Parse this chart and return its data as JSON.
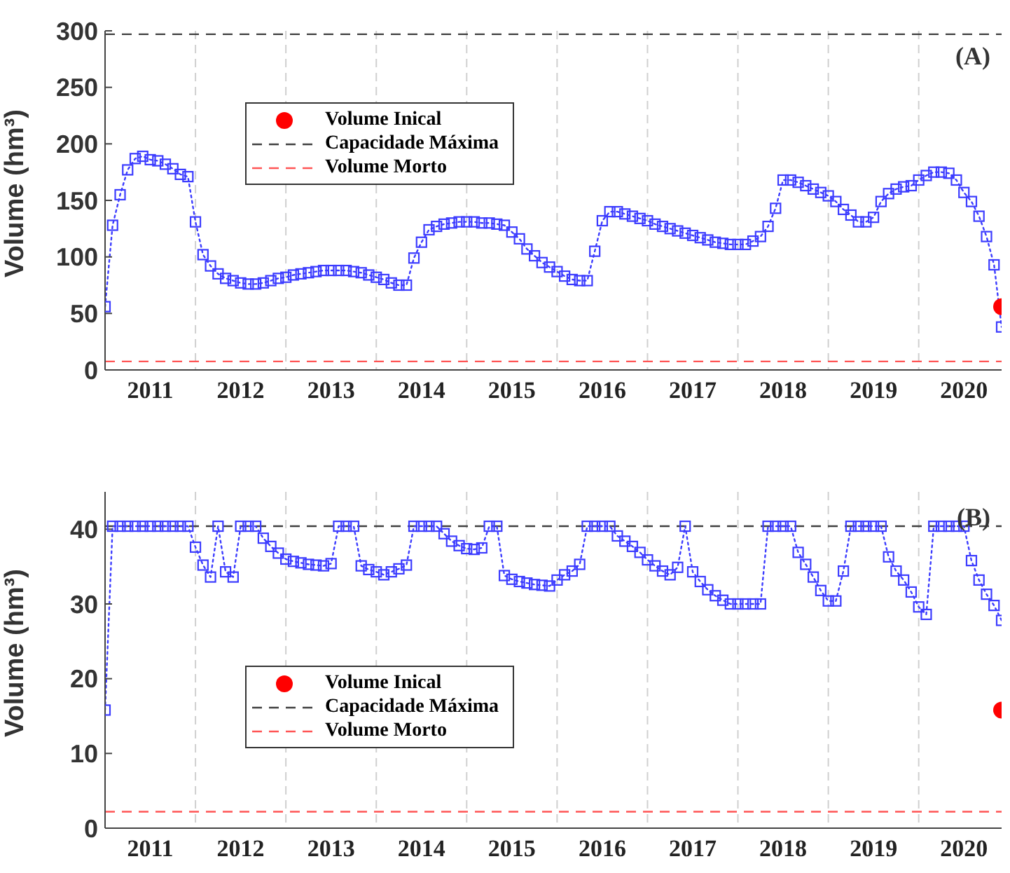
{
  "chart_data": [
    {
      "type": "line",
      "ylabel": "Volume (hm³)",
      "annotations": [
        "(A)"
      ],
      "x": [
        "2011-01",
        "2011-02",
        "2011-03",
        "2011-04",
        "2011-05",
        "2011-06",
        "2011-07",
        "2011-08",
        "2011-09",
        "2011-10",
        "2011-11",
        "2011-12",
        "2012-01",
        "2012-02",
        "2012-03",
        "2012-04",
        "2012-05",
        "2012-06",
        "2012-07",
        "2012-08",
        "2012-09",
        "2012-10",
        "2012-11",
        "2012-12",
        "2013-01",
        "2013-02",
        "2013-03",
        "2013-04",
        "2013-05",
        "2013-06",
        "2013-07",
        "2013-08",
        "2013-09",
        "2013-10",
        "2013-11",
        "2013-12",
        "2014-01",
        "2014-02",
        "2014-03",
        "2014-04",
        "2014-05",
        "2014-06",
        "2014-07",
        "2014-08",
        "2014-09",
        "2014-10",
        "2014-11",
        "2014-12",
        "2015-01",
        "2015-02",
        "2015-03",
        "2015-04",
        "2015-05",
        "2015-06",
        "2015-07",
        "2015-08",
        "2015-09",
        "2015-10",
        "2015-11",
        "2015-12",
        "2016-01",
        "2016-02",
        "2016-03",
        "2016-04",
        "2016-05",
        "2016-06",
        "2016-07",
        "2016-08",
        "2016-09",
        "2016-10",
        "2016-11",
        "2016-12",
        "2017-01",
        "2017-02",
        "2017-03",
        "2017-04",
        "2017-05",
        "2017-06",
        "2017-07",
        "2017-08",
        "2017-09",
        "2017-10",
        "2017-11",
        "2017-12",
        "2018-01",
        "2018-02",
        "2018-03",
        "2018-04",
        "2018-05",
        "2018-06",
        "2018-07",
        "2018-08",
        "2018-09",
        "2018-10",
        "2018-11",
        "2018-12",
        "2019-01",
        "2019-02",
        "2019-03",
        "2019-04",
        "2019-05",
        "2019-06",
        "2019-07",
        "2019-08",
        "2019-09",
        "2019-10",
        "2019-11",
        "2019-12",
        "2020-01",
        "2020-02",
        "2020-03",
        "2020-04",
        "2020-05",
        "2020-06",
        "2020-07",
        "2020-08",
        "2020-09",
        "2020-10",
        "2020-11",
        "2020-12"
      ],
      "series": [
        {
          "color": "#3c3cff",
          "marker": "square",
          "line_style": "dotted",
          "values": [
            56,
            128,
            155,
            177,
            187,
            189,
            186,
            185,
            182,
            178,
            173,
            171,
            131,
            102,
            92,
            85,
            81,
            79,
            77,
            76,
            76,
            77,
            79,
            81,
            82,
            84,
            85,
            86,
            87,
            88,
            88,
            88,
            88,
            87,
            86,
            84,
            82,
            80,
            77,
            75,
            75,
            99,
            113,
            124,
            127,
            129,
            130,
            131,
            131,
            131,
            130,
            130,
            129,
            128,
            122,
            116,
            107,
            101,
            95,
            91,
            87,
            83,
            80,
            79,
            79,
            105,
            132,
            140,
            140,
            138,
            136,
            134,
            132,
            129,
            127,
            125,
            123,
            121,
            119,
            117,
            115,
            113,
            112,
            111,
            111,
            111,
            114,
            118,
            127,
            143,
            168,
            168,
            166,
            163,
            160,
            157,
            154,
            149,
            142,
            137,
            131,
            131,
            135,
            149,
            156,
            160,
            162,
            163,
            168,
            172,
            175,
            175,
            174,
            168,
            157,
            149,
            136,
            118,
            93,
            38
          ]
        },
        {
          "type": "scatter",
          "name": "Volume Inical",
          "color": "#ff0000",
          "marker": "circle",
          "x": [
            "2020-12"
          ],
          "values": [
            56
          ]
        }
      ],
      "ref_lines": [
        {
          "axis": "y",
          "value": 297,
          "label": "Capacidade Máxima",
          "color": "#404040",
          "line_style": "dashed"
        },
        {
          "axis": "y",
          "value": 7.5,
          "label": "Volume Morto",
          "color": "#ff5555",
          "line_style": "dashed"
        }
      ],
      "xlim": [
        "2011-01",
        "2020-12"
      ],
      "xticks": [
        {
          "value": "2011-07",
          "label": "2011"
        },
        {
          "value": "2012-01",
          "label": null
        },
        {
          "value": "2012-07",
          "label": "2012"
        },
        {
          "value": "2013-01",
          "label": null
        },
        {
          "value": "2013-07",
          "label": "2013"
        },
        {
          "value": "2014-01",
          "label": null
        },
        {
          "value": "2014-07",
          "label": "2014"
        },
        {
          "value": "2015-01",
          "label": null
        },
        {
          "value": "2015-07",
          "label": "2015"
        },
        {
          "value": "2016-01",
          "label": null
        },
        {
          "value": "2016-07",
          "label": "2016"
        },
        {
          "value": "2017-01",
          "label": null
        },
        {
          "value": "2017-07",
          "label": "2017"
        },
        {
          "value": "2018-01",
          "label": null
        },
        {
          "value": "2018-07",
          "label": "2018"
        },
        {
          "value": "2019-01",
          "label": null
        },
        {
          "value": "2019-07",
          "label": "2019"
        },
        {
          "value": "2020-01",
          "label": null
        },
        {
          "value": "2020-07",
          "label": "2020"
        }
      ],
      "ylim": [
        0,
        300
      ],
      "yticks": [
        0,
        50,
        100,
        150,
        200,
        250,
        300
      ],
      "grid": "x",
      "legend": "top left"
    },
    {
      "type": "line",
      "ylabel": "Volume (hm³)",
      "annotations": [
        "(B)"
      ],
      "x": [
        "2011-01",
        "2011-02",
        "2011-03",
        "2011-04",
        "2011-05",
        "2011-06",
        "2011-07",
        "2011-08",
        "2011-09",
        "2011-10",
        "2011-11",
        "2011-12",
        "2012-01",
        "2012-02",
        "2012-03",
        "2012-04",
        "2012-05",
        "2012-06",
        "2012-07",
        "2012-08",
        "2012-09",
        "2012-10",
        "2012-11",
        "2012-12",
        "2013-01",
        "2013-02",
        "2013-03",
        "2013-04",
        "2013-05",
        "2013-06",
        "2013-07",
        "2013-08",
        "2013-09",
        "2013-10",
        "2013-11",
        "2013-12",
        "2014-01",
        "2014-02",
        "2014-03",
        "2014-04",
        "2014-05",
        "2014-06",
        "2014-07",
        "2014-08",
        "2014-09",
        "2014-10",
        "2014-11",
        "2014-12",
        "2015-01",
        "2015-02",
        "2015-03",
        "2015-04",
        "2015-05",
        "2015-06",
        "2015-07",
        "2015-08",
        "2015-09",
        "2015-10",
        "2015-11",
        "2015-12",
        "2016-01",
        "2016-02",
        "2016-03",
        "2016-04",
        "2016-05",
        "2016-06",
        "2016-07",
        "2016-08",
        "2016-09",
        "2016-10",
        "2016-11",
        "2016-12",
        "2017-01",
        "2017-02",
        "2017-03",
        "2017-04",
        "2017-05",
        "2017-06",
        "2017-07",
        "2017-08",
        "2017-09",
        "2017-10",
        "2017-11",
        "2017-12",
        "2018-01",
        "2018-02",
        "2018-03",
        "2018-04",
        "2018-05",
        "2018-06",
        "2018-07",
        "2018-08",
        "2018-09",
        "2018-10",
        "2018-11",
        "2018-12",
        "2019-01",
        "2019-02",
        "2019-03",
        "2019-04",
        "2019-05",
        "2019-06",
        "2019-07",
        "2019-08",
        "2019-09",
        "2019-10",
        "2019-11",
        "2019-12",
        "2020-01",
        "2020-02",
        "2020-03",
        "2020-04",
        "2020-05",
        "2020-06",
        "2020-07",
        "2020-08",
        "2020-09",
        "2020-10",
        "2020-11",
        "2020-12"
      ],
      "series": [
        {
          "color": "#3c3cff",
          "marker": "square",
          "line_style": "dotted",
          "values": [
            15.8,
            40.4,
            40.4,
            40.4,
            40.4,
            40.4,
            40.4,
            40.4,
            40.4,
            40.4,
            40.4,
            40.4,
            37.6,
            35.2,
            33.6,
            40.4,
            34.3,
            33.6,
            40.4,
            40.4,
            40.4,
            38.8,
            37.7,
            36.8,
            36.0,
            35.7,
            35.5,
            35.3,
            35.2,
            35.1,
            35.4,
            40.4,
            40.4,
            40.4,
            35.1,
            34.6,
            34.3,
            33.9,
            34.3,
            34.7,
            35.2,
            40.4,
            40.4,
            40.4,
            40.4,
            39.4,
            38.4,
            37.8,
            37.4,
            37.3,
            37.5,
            40.4,
            40.4,
            33.8,
            33.3,
            33.0,
            32.8,
            32.6,
            32.5,
            32.4,
            33.2,
            33.9,
            34.4,
            35.3,
            40.4,
            40.4,
            40.4,
            40.4,
            39.1,
            38.4,
            37.7,
            36.9,
            35.9,
            35.1,
            34.4,
            33.9,
            34.9,
            40.4,
            34.3,
            33.0,
            31.9,
            31.1,
            30.5,
            30.0,
            30.0,
            30.0,
            30.0,
            30.0,
            40.4,
            40.4,
            40.4,
            40.4,
            36.9,
            35.3,
            33.6,
            31.8,
            30.4,
            30.4,
            34.4,
            40.4,
            40.4,
            40.4,
            40.4,
            40.4,
            36.3,
            34.4,
            33.2,
            31.6,
            29.6,
            28.6,
            40.4,
            40.4,
            40.4,
            40.4,
            40.4,
            35.8,
            33.2,
            31.3,
            29.8,
            27.8
          ]
        },
        {
          "type": "scatter",
          "name": "Volume Inical",
          "color": "#ff0000",
          "marker": "circle",
          "x": [
            "2020-12"
          ],
          "values": [
            15.8
          ]
        }
      ],
      "ref_lines": [
        {
          "axis": "y",
          "value": 40.4,
          "label": "Capacidade Máxima",
          "color": "#404040",
          "line_style": "dashed"
        },
        {
          "axis": "y",
          "value": 2.2,
          "label": "Volume Morto",
          "color": "#ff5555",
          "line_style": "dashed"
        }
      ],
      "xlim": [
        "2011-01",
        "2020-12"
      ],
      "xticks": [
        {
          "value": "2011-07",
          "label": "2011"
        },
        {
          "value": "2012-01",
          "label": null
        },
        {
          "value": "2012-07",
          "label": "2012"
        },
        {
          "value": "2013-01",
          "label": null
        },
        {
          "value": "2013-07",
          "label": "2013"
        },
        {
          "value": "2014-01",
          "label": null
        },
        {
          "value": "2014-07",
          "label": "2014"
        },
        {
          "value": "2015-01",
          "label": null
        },
        {
          "value": "2015-07",
          "label": "2015"
        },
        {
          "value": "2016-01",
          "label": null
        },
        {
          "value": "2016-07",
          "label": "2016"
        },
        {
          "value": "2017-01",
          "label": null
        },
        {
          "value": "2017-07",
          "label": "2017"
        },
        {
          "value": "2018-01",
          "label": null
        },
        {
          "value": "2018-07",
          "label": "2018"
        },
        {
          "value": "2019-01",
          "label": null
        },
        {
          "value": "2019-07",
          "label": "2019"
        },
        {
          "value": "2020-01",
          "label": null
        },
        {
          "value": "2020-07",
          "label": "2020"
        }
      ],
      "ylim": [
        0,
        45
      ],
      "yticks": [
        0,
        10,
        20,
        30,
        40
      ],
      "grid": "x",
      "legend": "bottom left"
    }
  ]
}
